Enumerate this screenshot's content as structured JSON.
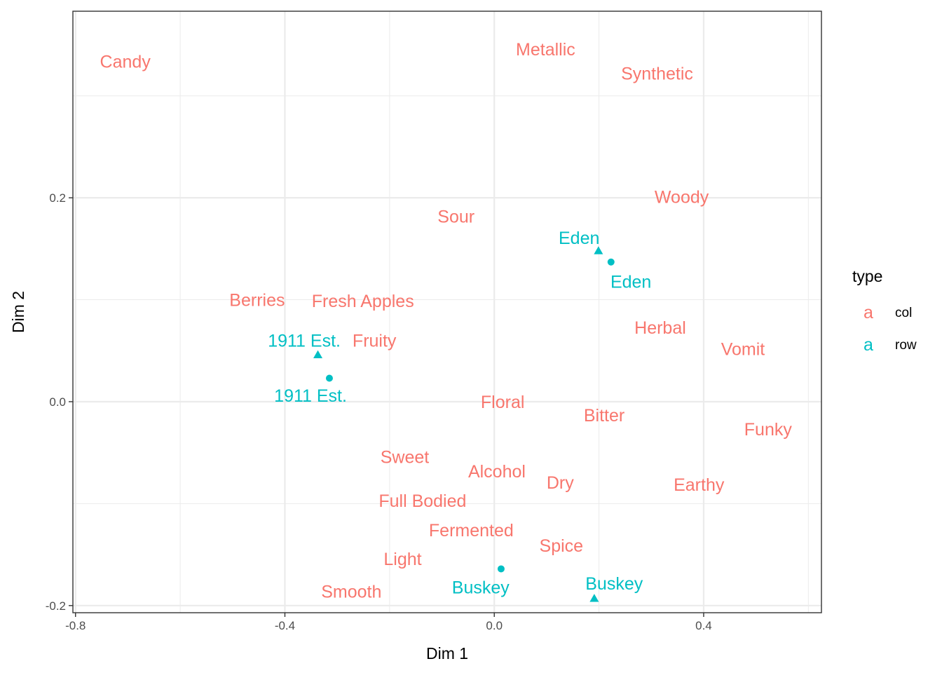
{
  "chart_data": {
    "type": "scatter",
    "title": "",
    "xlabel": "Dim 1",
    "ylabel": "Dim 2",
    "xlim": [
      -0.805,
      0.625
    ],
    "ylim": [
      -0.207,
      0.383
    ],
    "x_ticks": [
      -0.8,
      -0.4,
      0.0,
      0.4
    ],
    "x_tick_labels": [
      "-0.8",
      "-0.4",
      "0.0",
      "0.4"
    ],
    "y_ticks": [
      -0.2,
      0.0,
      0.2
    ],
    "y_tick_labels": [
      "-0.2",
      "0.0",
      "0.2"
    ],
    "grid": true,
    "legend": {
      "title": "type",
      "placement": "right",
      "key_glyph": "a",
      "entries": [
        {
          "label": "col",
          "color": "#F8766D"
        },
        {
          "label": "row",
          "color": "#00BFC4"
        }
      ]
    },
    "colors": {
      "col": "#F8766D",
      "row": "#00BFC4"
    },
    "col_labels": [
      {
        "text": "Candy",
        "x": -0.705,
        "y": 0.334
      },
      {
        "text": "Metallic",
        "x": 0.098,
        "y": 0.346
      },
      {
        "text": "Synthetic",
        "x": 0.311,
        "y": 0.322
      },
      {
        "text": "Woody",
        "x": 0.358,
        "y": 0.201
      },
      {
        "text": "Sour",
        "x": -0.073,
        "y": 0.182
      },
      {
        "text": "Berries",
        "x": -0.453,
        "y": 0.1
      },
      {
        "text": "Fresh Apples",
        "x": -0.251,
        "y": 0.099
      },
      {
        "text": "Fruity",
        "x": -0.229,
        "y": 0.06
      },
      {
        "text": "Herbal",
        "x": 0.317,
        "y": 0.073
      },
      {
        "text": "Vomit",
        "x": 0.475,
        "y": 0.052
      },
      {
        "text": "Floral",
        "x": 0.016,
        "y": 0.0
      },
      {
        "text": "Bitter",
        "x": 0.21,
        "y": -0.013
      },
      {
        "text": "Funky",
        "x": 0.523,
        "y": -0.027
      },
      {
        "text": "Sweet",
        "x": -0.171,
        "y": -0.054
      },
      {
        "text": "Alcohol",
        "x": 0.005,
        "y": -0.068
      },
      {
        "text": "Dry",
        "x": 0.126,
        "y": -0.079
      },
      {
        "text": "Earthy",
        "x": 0.391,
        "y": -0.081
      },
      {
        "text": "Full Bodied",
        "x": -0.137,
        "y": -0.097
      },
      {
        "text": "Fermented",
        "x": -0.044,
        "y": -0.126
      },
      {
        "text": "Spice",
        "x": 0.128,
        "y": -0.141
      },
      {
        "text": "Light",
        "x": -0.175,
        "y": -0.154
      },
      {
        "text": "Smooth",
        "x": -0.273,
        "y": -0.186
      }
    ],
    "row_labels": [
      {
        "text": "Eden",
        "x": 0.162,
        "y": 0.161
      },
      {
        "text": "Eden",
        "x": 0.261,
        "y": 0.118
      },
      {
        "text": "1911 Est.",
        "x": -0.363,
        "y": 0.06
      },
      {
        "text": "1911 Est.",
        "x": -0.351,
        "y": 0.006
      },
      {
        "text": "Buskey",
        "x": -0.026,
        "y": -0.182
      },
      {
        "text": "Buskey",
        "x": 0.229,
        "y": -0.178
      }
    ],
    "row_points": [
      {
        "shape": "triangle",
        "x": 0.199,
        "y": 0.148
      },
      {
        "shape": "circle",
        "x": 0.223,
        "y": 0.137
      },
      {
        "shape": "triangle",
        "x": -0.337,
        "y": 0.046
      },
      {
        "shape": "circle",
        "x": -0.315,
        "y": 0.023
      },
      {
        "shape": "circle",
        "x": 0.013,
        "y": -0.164
      },
      {
        "shape": "triangle",
        "x": 0.191,
        "y": -0.193
      }
    ]
  }
}
